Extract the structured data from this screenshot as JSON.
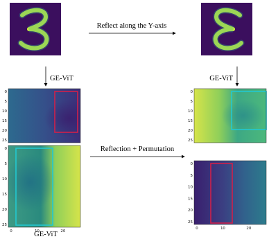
{
  "top_arrow_label": "Reflect along the Y-axis",
  "mid_arrow_label": "Reflection + Permutation",
  "left_model_label": "GE-ViT",
  "right_model_label": "GE-ViT",
  "bottom_label": "GE-ViT",
  "heatmap_axis": {
    "x_ticks": [
      "0",
      "10",
      "20"
    ],
    "y_ticks": [
      "0",
      "5",
      "10",
      "15",
      "20",
      "25"
    ]
  },
  "input_digit": "3",
  "reflected_digit": "3 (mirrored)",
  "colors": {
    "digit_bg": "#3b0f5e",
    "digit_stroke": "#d8f03a",
    "heat_dark": "#3b2f7a",
    "heat_mid": "#2a7a8c",
    "heat_bright": "#c8e048",
    "box_red": "#d0204a",
    "box_cyan": "#22c8d0"
  }
}
